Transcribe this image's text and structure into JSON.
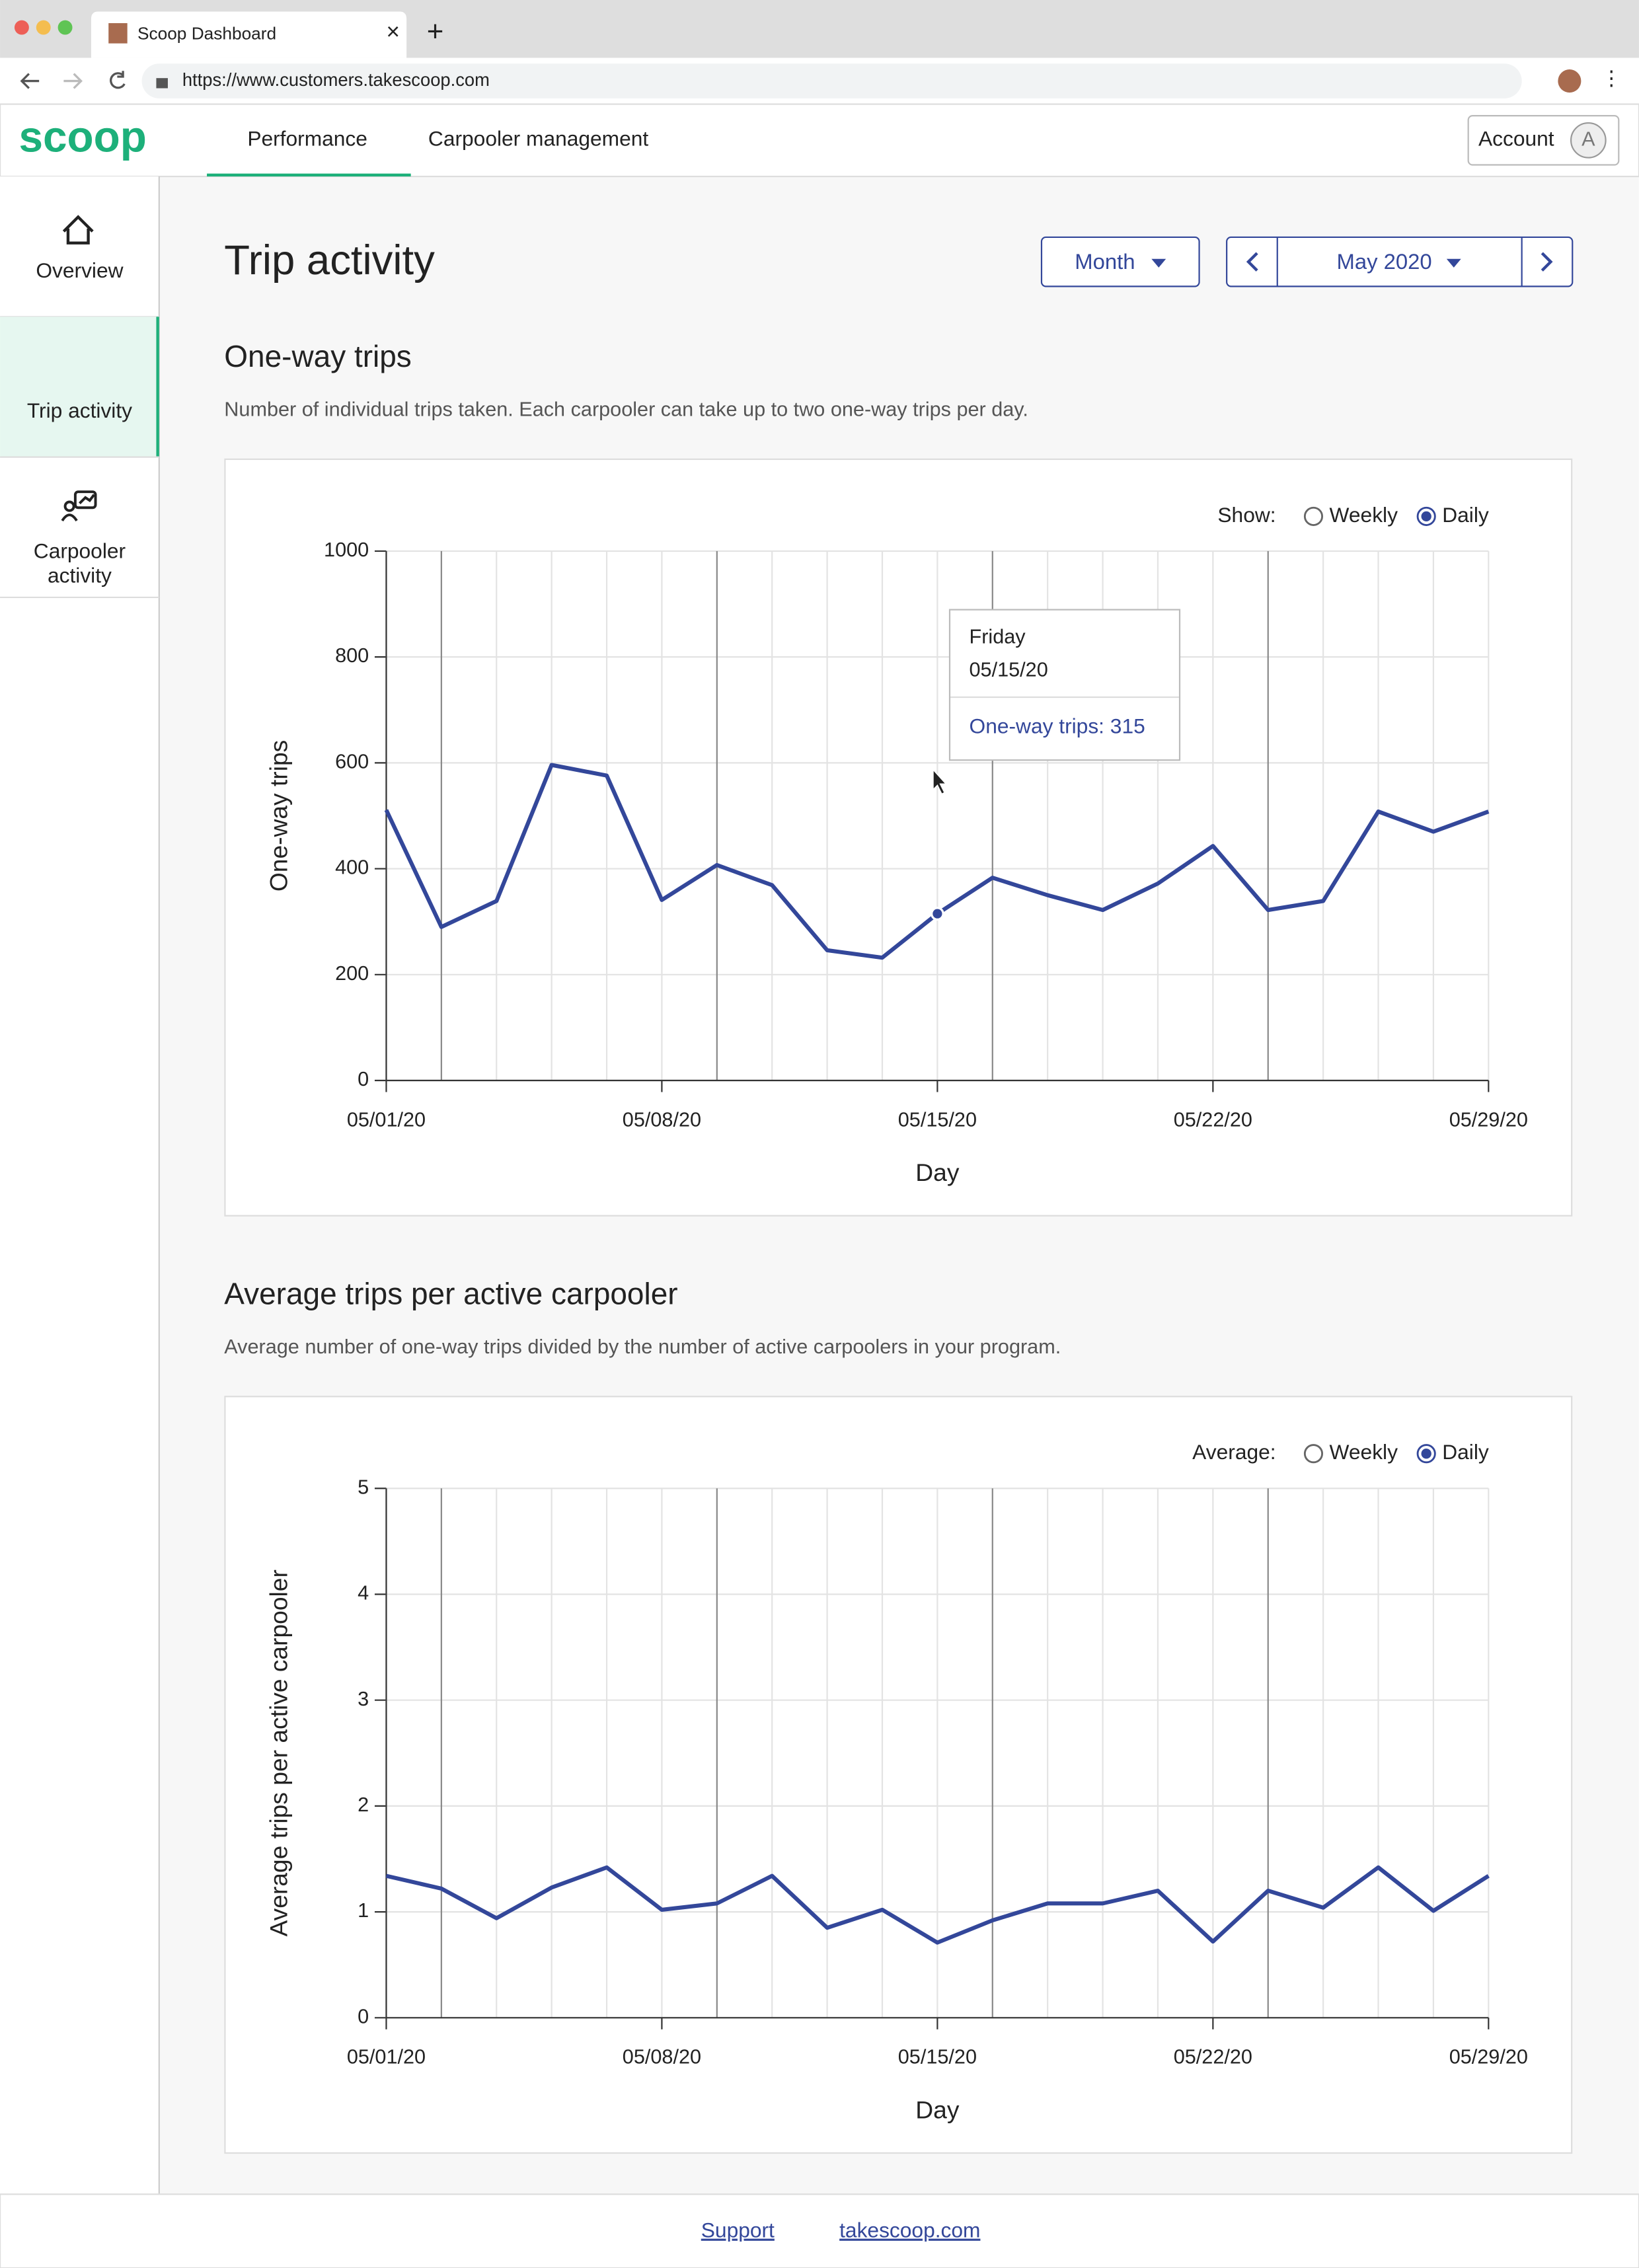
{
  "browser": {
    "tab_title": "Scoop Dashboard",
    "url": "https://www.customers.takescoop.com"
  },
  "header": {
    "logo": "scoop",
    "tabs": [
      "Performance",
      "Carpooler management"
    ],
    "active_tab": 0,
    "account": "Account",
    "avatar": "A"
  },
  "sidebar": {
    "items": [
      [
        "Overview"
      ],
      [
        "Trip activity"
      ],
      [
        "Carpooler",
        "activity"
      ]
    ],
    "active": 1
  },
  "page": {
    "title": "Trip activity",
    "period": "Month",
    "month": "May 2020"
  },
  "sections": [
    {
      "heading": "One-way trips",
      "description": "Number of individual trips taken. Each carpooler can take up to two one-way trips per day.",
      "toggle_label": "Show:",
      "options": [
        "Weekly",
        "Daily"
      ],
      "selected": 1
    },
    {
      "heading": "Average trips per active carpooler",
      "description": "Average number of one-way trips divided by the number of active carpoolers in your program.",
      "toggle_label": "Average:",
      "options": [
        "Weekly",
        "Daily"
      ],
      "selected": 1
    }
  ],
  "chart_data": [
    {
      "type": "line",
      "ylabel": "One-way trips",
      "xlabel": "Day",
      "color": "#33479a",
      "grid": true,
      "week_lines": [
        1,
        6,
        11,
        16
      ],
      "categories": [
        "05/01/20",
        null,
        null,
        null,
        null,
        "05/08/20",
        null,
        null,
        null,
        null,
        "05/15/20",
        null,
        null,
        null,
        null,
        "05/22/20",
        null,
        null,
        null,
        null,
        "05/29/20"
      ],
      "values": [
        511,
        290,
        339,
        596,
        576,
        341,
        407,
        369,
        246,
        232,
        315,
        383,
        350,
        322,
        372,
        443,
        322,
        339,
        508,
        470,
        508
      ],
      "ylim": [
        0,
        1000
      ],
      "yticks": [
        0,
        200,
        400,
        600,
        800,
        1000
      ],
      "highlight": 10,
      "tooltip": {
        "day": "Friday",
        "date": "05/15/20",
        "label": "One-way trips: 315"
      }
    },
    {
      "type": "line",
      "ylabel": "Average trips per active carpooler",
      "xlabel": "Day",
      "color": "#33479a",
      "grid": true,
      "week_lines": [
        1,
        6,
        11,
        16
      ],
      "categories": [
        "05/01/20",
        null,
        null,
        null,
        null,
        "05/08/20",
        null,
        null,
        null,
        null,
        "05/15/20",
        null,
        null,
        null,
        null,
        "05/22/20",
        null,
        null,
        null,
        null,
        "05/29/20"
      ],
      "values": [
        1.34,
        1.22,
        0.94,
        1.23,
        1.42,
        1.02,
        1.08,
        1.34,
        0.85,
        1.02,
        0.71,
        0.92,
        1.08,
        1.08,
        1.2,
        0.72,
        1.2,
        1.04,
        1.42,
        1.01,
        1.34
      ],
      "ylim": [
        0,
        5
      ],
      "yticks": [
        0,
        1,
        2,
        3,
        4,
        5
      ]
    }
  ],
  "footer": {
    "links": [
      "Support",
      "takescoop.com"
    ]
  }
}
